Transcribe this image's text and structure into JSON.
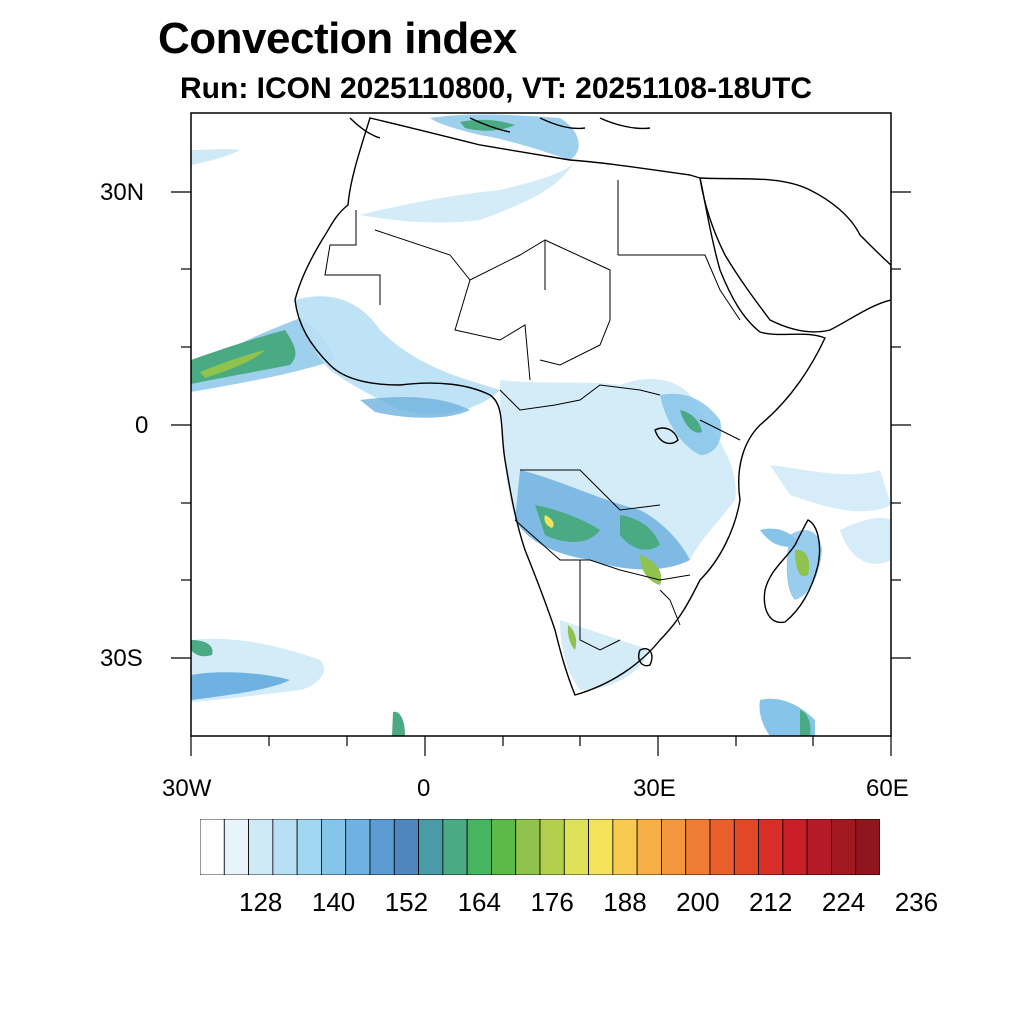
{
  "title": "Convection index",
  "subtitle": "Run: ICON 2025110800,  VT: 20251108-18UTC",
  "map": {
    "projection": "cylindrical-equidistant",
    "lon_range": [
      -30,
      60
    ],
    "lat_range": [
      -40,
      40
    ],
    "lat_labels": [
      "30N",
      "0",
      "30S"
    ],
    "lon_labels": [
      "30W",
      "0",
      "30E",
      "60E"
    ]
  },
  "colorbar": {
    "colors": [
      "#ffffff",
      "#e8f4fb",
      "#cfe9f7",
      "#b8e0f5",
      "#a2d7f2",
      "#86c4ea",
      "#6fb1e0",
      "#5d9bd3",
      "#4f86c0",
      "#4b9aa7",
      "#4aaa84",
      "#48b461",
      "#5cba4a",
      "#8fc34d",
      "#b4cf4d",
      "#dde25a",
      "#f2e35a",
      "#f8cb50",
      "#f6b046",
      "#f4963e",
      "#ef7b35",
      "#e9602d",
      "#e24828",
      "#d92e27",
      "#c91f28",
      "#b51a26",
      "#a3181f",
      "#8e161c"
    ],
    "tick_labels": [
      "128",
      "140",
      "152",
      "164",
      "176",
      "188",
      "200",
      "212",
      "224",
      "236"
    ]
  }
}
